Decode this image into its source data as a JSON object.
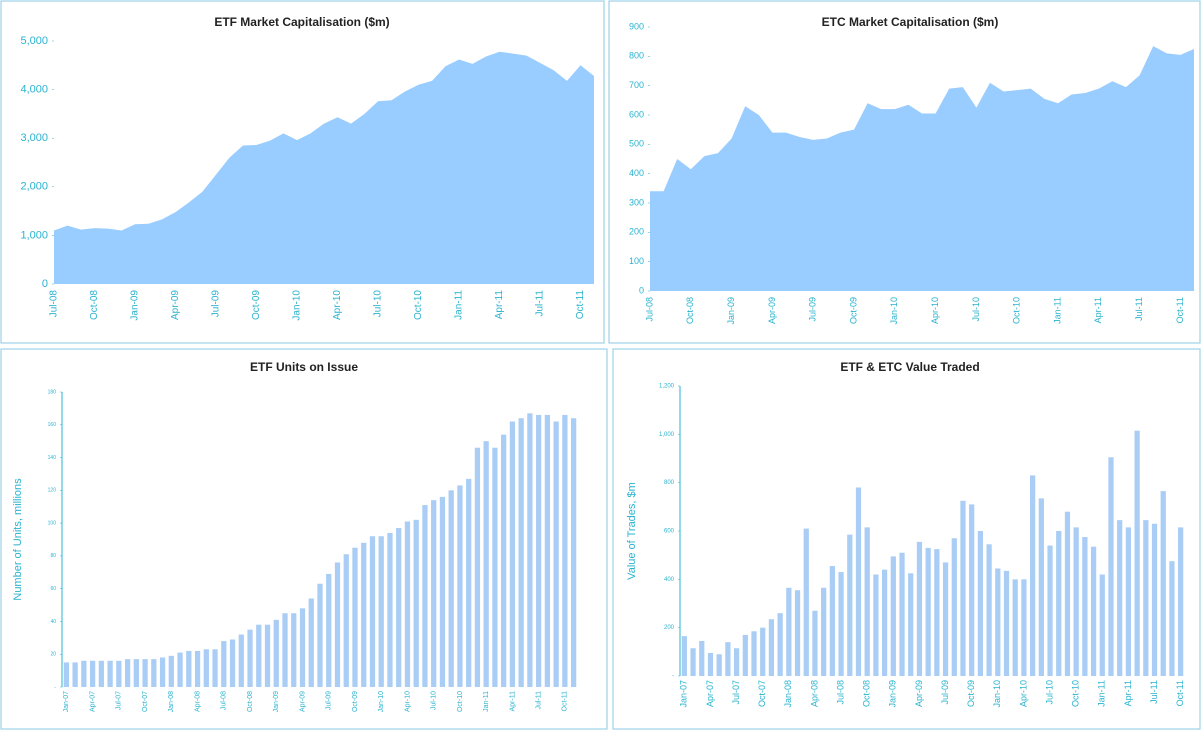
{
  "chart_data": [
    {
      "type": "area",
      "title": "ETF Market Capitalisation ($m)",
      "color": "#99ccff",
      "categories": [
        "Jul-08",
        null,
        null,
        "Oct-08",
        null,
        null,
        "Jan-09",
        null,
        null,
        "Apr-09",
        null,
        null,
        "Jul-09",
        null,
        null,
        "Oct-09",
        null,
        null,
        "Jan-10",
        null,
        null,
        "Apr-10",
        null,
        null,
        "Jul-10",
        null,
        null,
        "Oct-10",
        null,
        null,
        "Jan-11",
        null,
        null,
        "Apr-11",
        null,
        null,
        "Jul-11",
        null,
        null,
        "Oct-11",
        null
      ],
      "values": [
        1100,
        1200,
        1120,
        1150,
        1140,
        1100,
        1230,
        1240,
        1330,
        1480,
        1680,
        1900,
        2250,
        2600,
        2850,
        2860,
        2950,
        3100,
        2960,
        3100,
        3300,
        3430,
        3300,
        3500,
        3760,
        3780,
        3960,
        4100,
        4180,
        4480,
        4620,
        4530,
        4680,
        4780,
        4740,
        4700,
        4550,
        4400,
        4180,
        4500,
        4280
      ],
      "ylim": [
        0,
        5000
      ],
      "yticks": [
        0,
        {
          "value": 1000,
          "label": "1,000"
        },
        {
          "value": 2000,
          "label": "2,000"
        },
        {
          "value": 3000,
          "label": "3,000"
        },
        {
          "value": 4000,
          "label": "4,000"
        },
        {
          "value": 5000,
          "label": "5,000"
        }
      ]
    },
    {
      "type": "area",
      "title": "ETC Market Capitalisation ($m)",
      "color": "#99ccff",
      "categories": [
        "Jul-08",
        null,
        null,
        "Oct-08",
        null,
        null,
        "Jan-09",
        null,
        null,
        "Apr-09",
        null,
        null,
        "Jul-09",
        null,
        null,
        "Oct-09",
        null,
        null,
        "Jan-10",
        null,
        null,
        "Apr-10",
        null,
        null,
        "Jul-10",
        null,
        null,
        "Oct-10",
        null,
        null,
        "Jan-11",
        null,
        null,
        "Apr-11",
        null,
        null,
        "Jul-11",
        null,
        null,
        "Oct-11",
        null
      ],
      "values": [
        340,
        340,
        450,
        415,
        460,
        470,
        520,
        630,
        600,
        540,
        540,
        525,
        515,
        520,
        540,
        550,
        640,
        620,
        620,
        635,
        605,
        605,
        690,
        695,
        625,
        710,
        680,
        685,
        690,
        655,
        640,
        670,
        675,
        690,
        715,
        695,
        735,
        835,
        810,
        805,
        825
      ],
      "ylim": [
        0,
        900
      ],
      "yticks": [
        0,
        100,
        200,
        300,
        400,
        500,
        600,
        700,
        800,
        900
      ]
    },
    {
      "type": "bar",
      "title": "ETF Units on Issue",
      "y_label": "Number of Units, millions",
      "color": "#a9cdf5",
      "categories": [
        "Jan-07",
        null,
        null,
        "Apr-07",
        null,
        null,
        "Jul-07",
        null,
        null,
        "Oct-07",
        null,
        null,
        "Jan-08",
        null,
        null,
        "Apr-08",
        null,
        null,
        "Jul-08",
        null,
        null,
        "Oct-08",
        null,
        null,
        "Jan-09",
        null,
        null,
        "Apr-09",
        null,
        null,
        "Jul-09",
        null,
        null,
        "Oct-09",
        null,
        null,
        "Jan-10",
        null,
        null,
        "Apr-10",
        null,
        null,
        "Jul-10",
        null,
        null,
        "Oct-10",
        null,
        null,
        "Jan-11",
        null,
        null,
        "Apr-11",
        null,
        null,
        "Jul-11",
        null,
        null,
        "Oct-11",
        null
      ],
      "values": [
        15,
        15,
        16,
        16,
        16,
        16,
        16,
        17,
        17,
        17,
        17,
        18,
        19,
        21,
        22,
        22,
        23,
        23,
        28,
        29,
        32,
        35,
        38,
        38,
        41,
        45,
        45,
        48,
        54,
        63,
        69,
        76,
        81,
        85,
        88,
        92,
        92,
        94,
        97,
        101,
        102,
        111,
        114,
        116,
        120,
        123,
        127,
        146,
        150,
        146,
        154,
        162,
        164,
        167,
        166,
        166,
        162,
        166,
        164
      ],
      "ylim": [
        0,
        180
      ],
      "yticks": [
        {
          "value": 0,
          "label": "-"
        },
        20,
        40,
        60,
        80,
        100,
        120,
        140,
        160,
        180
      ]
    },
    {
      "type": "bar",
      "title": "ETF & ETC Value Traded",
      "y_label": "Value of Trades, $m",
      "color": "#a9cdf5",
      "categories": [
        "Jan-07",
        null,
        null,
        "Apr-07",
        null,
        null,
        "Jul-07",
        null,
        null,
        "Oct-07",
        null,
        null,
        "Jan-08",
        null,
        null,
        "Apr-08",
        null,
        null,
        "Jul-08",
        null,
        null,
        "Oct-08",
        null,
        null,
        "Jan-09",
        null,
        null,
        "Apr-09",
        null,
        null,
        "Jul-09",
        null,
        null,
        "Oct-09",
        null,
        null,
        "Jan-10",
        null,
        null,
        "Apr-10",
        null,
        null,
        "Jul-10",
        null,
        null,
        "Oct-10",
        null,
        null,
        "Jan-11",
        null,
        null,
        "Apr-11",
        null,
        null,
        "Jul-11",
        null,
        null,
        "Oct-11"
      ],
      "values": [
        165,
        115,
        145,
        95,
        90,
        140,
        115,
        170,
        185,
        200,
        235,
        260,
        365,
        355,
        610,
        270,
        365,
        455,
        430,
        585,
        780,
        615,
        420,
        440,
        495,
        510,
        425,
        555,
        530,
        525,
        470,
        570,
        725,
        710,
        600,
        545,
        445,
        435,
        400,
        400,
        830,
        735,
        540,
        600,
        680,
        615,
        575,
        535,
        420,
        905,
        645,
        615,
        1015,
        645,
        630,
        765,
        475,
        615
      ],
      "ylim": [
        0,
        1200
      ],
      "yticks": [
        {
          "value": 0,
          "label": "-"
        },
        200,
        400,
        600,
        800,
        {
          "value": 1000,
          "label": "1,000"
        },
        {
          "value": 1200,
          "label": "1,200"
        }
      ]
    }
  ]
}
